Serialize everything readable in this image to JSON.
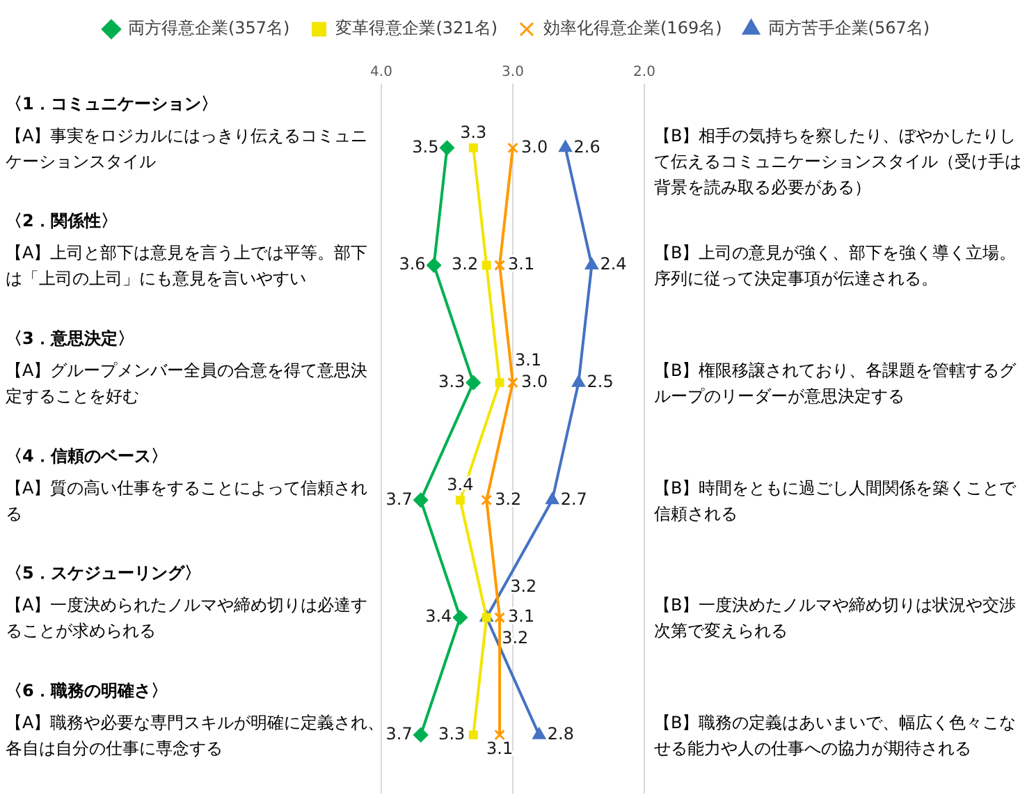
{
  "chart_data": {
    "type": "line",
    "orientation": "horizontal",
    "categories": [
      null,
      null,
      null,
      null,
      null,
      null
    ],
    "series": [
      {
        "name": "両方得意企業(357名)",
        "color": "#00b050",
        "marker": "diamond",
        "values": [
          3.5,
          3.6,
          3.3,
          3.7,
          3.4,
          3.7
        ],
        "value_labels": [
          "3.5",
          "3.6",
          "3.3",
          "3.7",
          "3.4",
          "3.7"
        ]
      },
      {
        "name": "変革得意企業(321名)",
        "color": "#f2e500",
        "marker": "square",
        "values": [
          3.3,
          3.2,
          3.1,
          3.4,
          3.2,
          3.3
        ],
        "value_labels": [
          "3.3",
          "3.2",
          "3.1",
          "3.4",
          "3.2",
          "3.3"
        ]
      },
      {
        "name": "効率化得意企業(169名)",
        "color": "#ff9900",
        "marker": "cross",
        "values": [
          3.0,
          3.1,
          3.0,
          3.2,
          3.1,
          3.1
        ],
        "value_labels": [
          "3.0",
          "3.1",
          "3.0",
          "3.2",
          "3.1",
          "3.1"
        ]
      },
      {
        "name": "両方苦手企業(567名)",
        "color": "#4472c4",
        "marker": "triangle",
        "values": [
          2.6,
          2.4,
          2.5,
          2.7,
          3.2,
          2.8
        ],
        "value_labels": [
          "2.6",
          "2.4",
          "2.5",
          "2.7",
          "3.2",
          "2.8"
        ]
      }
    ],
    "xlim": [
      4.0,
      2.0
    ],
    "xticks": [
      {
        "value": 4,
        "label": "4.0"
      },
      {
        "value": 3,
        "label": "3.0"
      },
      {
        "value": 2,
        "label": "2.0"
      }
    ],
    "tick_labels": "x",
    "grid": "x",
    "legend": "top",
    "annotations": [
      "〈1．コミュニケーション〉",
      "【A】事実をロジカルにはっきり伝えるコミュニケーションスタイル",
      "【B】相手の気持ちを察したり、ぼやかしたりして伝えるコミュニケーションスタイル（受け手は背景を読み取る必要がある）",
      "〈2．関係性〉",
      "【A】上司と部下は意見を言う上では平等。部下は「上司の上司」にも意見を言いやすい",
      "【B】上司の意見が強く、部下を強く導く立場。序列に従って決定事項が伝達される。",
      "〈3．意思決定〉",
      "【A】グループメンバー全員の合意を得て意思決定することを好む",
      "【B】権限移譲されており、各課題を管轄するグループのリーダーが意思決定する",
      "〈4．信頼のベース〉",
      "【A】質の高い仕事をすることによって信頼される",
      "【B】時間をともに過ごし人間関係を築くことで信頼される",
      "〈5．スケジューリング〉",
      "【A】一度決められたノルマや締め切りは必達することが求められる",
      "【B】一度決めたノルマや締め切りは状況や交渉次第で変えられる",
      "〈6．職務の明確さ〉",
      "【A】職務や必要な専門スキルが明確に定義され、各自は自分の仕事に専念する",
      "【B】職務の定義はあいまいで、幅広く色々こなせる能力や人の仕事への協力が期待される"
    ]
  }
}
